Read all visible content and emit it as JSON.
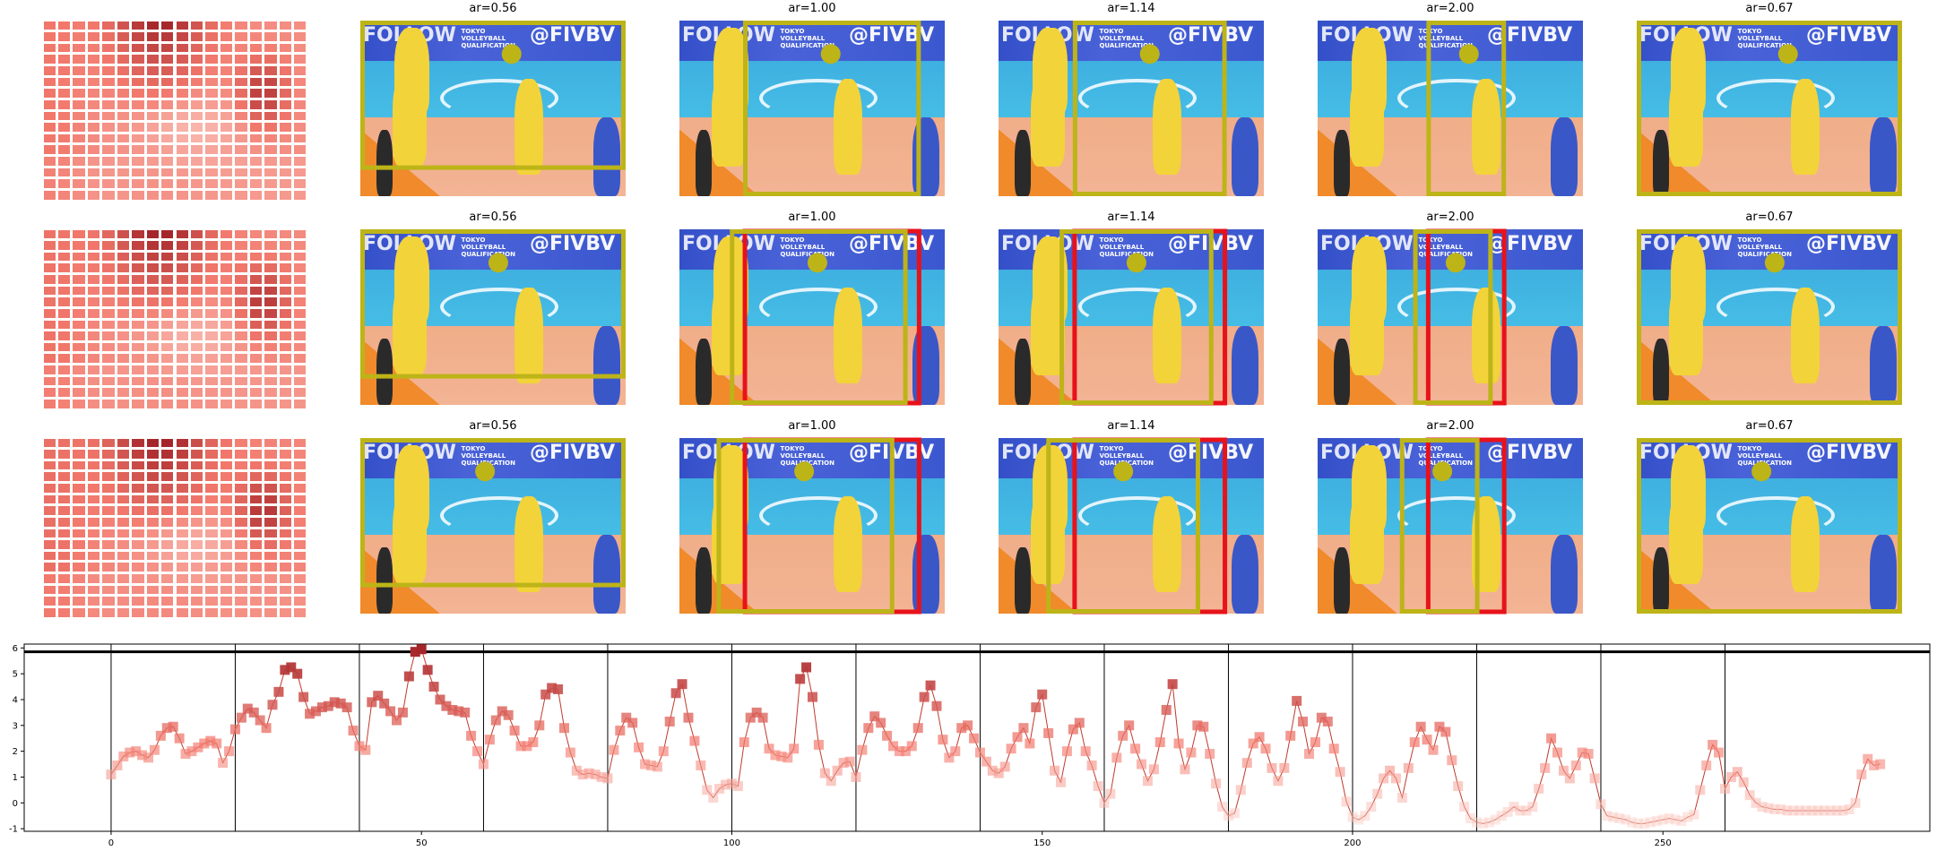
{
  "panel_titles": [
    "ar=0.56",
    "ar=1.00",
    "ar=1.14",
    "ar=2.00",
    "ar=0.67"
  ],
  "photo_text": {
    "left_banner": "FOLLOW",
    "right_banner": "@FIVBV",
    "small_banner": "TOKYO\nVOLLEYBALL\nQUALIFICATION"
  },
  "colors": {
    "crop_box": "#bdb418",
    "marker": "#bdb418",
    "red_box": "#e8121a",
    "line": "#c0392b",
    "heat_low": "#fff1ea",
    "heat_high": "#a5262a"
  },
  "chart_data": {
    "type": "line",
    "title": "",
    "xlabel": "",
    "ylabel": "",
    "xlim": [
      -14,
      293
    ],
    "ylim": [
      -1.1,
      6.15
    ],
    "xticks": [
      0,
      50,
      100,
      150,
      200,
      250
    ],
    "yticks": [
      -1,
      0,
      1,
      2,
      3,
      4,
      5,
      6
    ],
    "hline": 5.85,
    "vlines": [
      0,
      20,
      40,
      60,
      80,
      100,
      120,
      140,
      160,
      180,
      200,
      220,
      240,
      260
    ],
    "series": [
      {
        "marker": "square",
        "values": [
          1.1,
          1.45,
          1.8,
          1.95,
          2.0,
          1.85,
          1.75,
          2.05,
          2.6,
          2.9,
          2.95,
          2.5,
          1.9,
          2.0,
          2.15,
          2.3,
          2.4,
          2.3,
          1.55,
          2.0,
          2.85,
          3.3,
          3.65,
          3.5,
          3.2,
          2.9,
          3.8,
          4.3,
          5.15,
          5.25,
          5.0,
          4.1,
          3.45,
          3.55,
          3.7,
          3.75,
          3.9,
          3.85,
          3.7,
          2.8,
          2.2,
          2.05,
          3.9,
          4.15,
          3.85,
          3.55,
          3.2,
          3.5,
          4.9,
          5.85,
          5.95,
          5.15,
          4.5,
          4.0,
          3.75,
          3.6,
          3.55,
          3.5,
          2.6,
          2.0,
          1.5,
          2.45,
          3.2,
          3.55,
          3.4,
          2.8,
          2.2,
          2.2,
          2.35,
          3.0,
          4.2,
          4.45,
          4.4,
          2.9,
          1.95,
          1.25,
          1.1,
          1.15,
          1.1,
          1.0,
          0.95,
          2.05,
          2.8,
          3.3,
          3.1,
          2.15,
          1.5,
          1.45,
          1.4,
          2.0,
          3.15,
          4.25,
          4.6,
          3.3,
          2.4,
          1.45,
          0.5,
          0.2,
          0.55,
          0.7,
          0.75,
          0.65,
          2.35,
          3.3,
          3.5,
          3.3,
          2.1,
          1.85,
          1.8,
          1.75,
          2.1,
          4.8,
          5.25,
          4.1,
          2.25,
          1.15,
          0.85,
          1.25,
          1.55,
          1.6,
          1.0,
          2.05,
          2.9,
          3.35,
          3.1,
          2.6,
          2.2,
          2.0,
          2.0,
          2.2,
          2.9,
          4.1,
          4.55,
          3.75,
          2.45,
          1.75,
          2.0,
          2.9,
          3.0,
          2.5,
          1.95,
          1.6,
          1.25,
          1.15,
          1.4,
          2.1,
          2.55,
          2.9,
          2.3,
          3.7,
          4.2,
          2.7,
          1.25,
          0.8,
          2.0,
          2.85,
          3.1,
          2.0,
          1.45,
          0.65,
          0.0,
          0.35,
          1.75,
          2.6,
          3.0,
          2.1,
          1.5,
          0.85,
          1.3,
          2.35,
          3.6,
          4.6,
          2.3,
          1.3,
          1.95,
          3.0,
          2.95,
          1.9,
          0.75,
          -0.15,
          -0.5,
          -0.4,
          0.5,
          1.55,
          2.3,
          2.55,
          2.1,
          1.35,
          0.85,
          1.35,
          2.6,
          3.95,
          3.15,
          1.9,
          2.35,
          3.3,
          3.15,
          2.1,
          1.2,
          0.05,
          -0.55,
          -0.65,
          -0.5,
          -0.15,
          0.35,
          0.95,
          1.25,
          0.95,
          0.2,
          1.35,
          2.35,
          2.95,
          2.45,
          2.05,
          2.95,
          2.75,
          1.65,
          0.65,
          -0.15,
          -0.6,
          -0.75,
          -0.8,
          -0.75,
          -0.65,
          -0.5,
          -0.35,
          -0.15,
          -0.3,
          -0.3,
          -0.15,
          0.55,
          1.35,
          2.5,
          1.95,
          1.25,
          0.95,
          1.45,
          1.95,
          1.9,
          0.95,
          -0.05,
          -0.5,
          -0.55,
          -0.6,
          -0.65,
          -0.75,
          -0.8,
          -0.8,
          -0.75,
          -0.7,
          -0.65,
          -0.6,
          -0.65,
          -0.7,
          -0.55,
          -0.45,
          0.5,
          1.45,
          2.25,
          1.95,
          0.55,
          1.0,
          1.2,
          0.8,
          0.3,
          0.0,
          -0.15,
          -0.2,
          -0.25,
          -0.25,
          -0.3,
          -0.3,
          -0.3,
          -0.3,
          -0.3,
          -0.3,
          -0.3,
          -0.3,
          -0.3,
          -0.3,
          -0.25,
          0.0,
          1.1,
          1.7,
          1.45,
          1.5
        ]
      }
    ]
  }
}
